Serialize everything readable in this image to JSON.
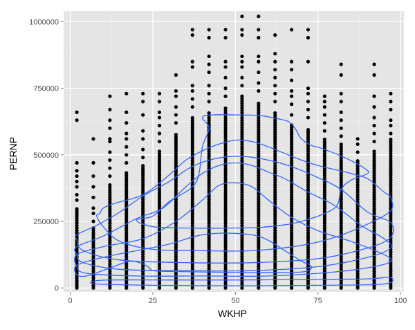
{
  "chart_data": {
    "type": "scatter",
    "title": "",
    "xlabel": "WKHP",
    "ylabel": "PERNP",
    "xlim": [
      -2,
      101
    ],
    "ylim": [
      -15000,
      1040000
    ],
    "x_ticks": [
      0,
      25,
      50,
      75,
      100
    ],
    "x_tick_labels": [
      "0",
      "25",
      "50",
      "75",
      "100"
    ],
    "y_ticks": [
      0,
      250000,
      500000,
      750000,
      1000000
    ],
    "y_tick_labels": [
      "0",
      "250000",
      "500000",
      "750000",
      "1000000"
    ],
    "grid": true,
    "legend": "none",
    "colors": {
      "panel_background": "#e5e5e5",
      "grid_major": "#ffffff",
      "grid_minor": "#f2f2f2",
      "points": "#000000",
      "contours": "#3366ff"
    },
    "point_columns": [
      {
        "x": 2,
        "dense_max": 300000,
        "outliers": [
          330000,
          350000,
          380000,
          400000,
          420000,
          440000,
          470000,
          630000,
          660000
        ]
      },
      {
        "x": 7,
        "dense_max": 230000,
        "outliers": [
          250000,
          280000,
          300000,
          340000,
          380000,
          420000,
          470000,
          560000
        ]
      },
      {
        "x": 12,
        "dense_max": 390000,
        "outliers": [
          420000,
          450000,
          480000,
          510000,
          550000,
          560000,
          600000,
          630000,
          670000,
          720000
        ]
      },
      {
        "x": 17,
        "dense_max": 440000,
        "outliers": [
          470000,
          500000,
          530000,
          560000,
          580000,
          620000,
          660000,
          730000
        ]
      },
      {
        "x": 22,
        "dense_max": 460000,
        "outliers": [
          490000,
          520000,
          560000,
          590000,
          650000,
          700000,
          730000
        ]
      },
      {
        "x": 27,
        "dense_max": 520000,
        "outliers": [
          550000,
          580000,
          610000,
          640000,
          660000,
          700000,
          730000
        ]
      },
      {
        "x": 32,
        "dense_max": 580000,
        "outliers": [
          620000,
          650000,
          680000,
          720000,
          740000,
          800000
        ]
      },
      {
        "x": 37,
        "dense_max": 640000,
        "outliers": [
          680000,
          710000,
          740000,
          760000,
          830000,
          850000,
          950000,
          970000
        ]
      },
      {
        "x": 42,
        "dense_max": 660000,
        "outliers": [
          700000,
          730000,
          760000,
          810000,
          840000,
          870000,
          940000,
          970000
        ]
      },
      {
        "x": 47,
        "dense_max": 680000,
        "outliers": [
          720000,
          750000,
          790000,
          830000,
          850000,
          940000,
          970000
        ]
      },
      {
        "x": 52,
        "dense_max": 720000,
        "outliers": [
          760000,
          790000,
          830000,
          850000,
          870000,
          950000,
          970000,
          1020000
        ]
      },
      {
        "x": 57,
        "dense_max": 700000,
        "outliers": [
          740000,
          770000,
          810000,
          850000,
          870000,
          940000,
          970000,
          1020000
        ]
      },
      {
        "x": 62,
        "dense_max": 660000,
        "outliers": [
          700000,
          730000,
          760000,
          790000,
          820000,
          850000,
          880000,
          950000
        ]
      },
      {
        "x": 67,
        "dense_max": 620000,
        "outliers": [
          650000,
          690000,
          720000,
          740000,
          780000,
          820000,
          850000,
          970000
        ]
      },
      {
        "x": 72,
        "dense_max": 600000,
        "outliers": [
          640000,
          670000,
          700000,
          730000,
          750000,
          850000,
          940000,
          970000
        ]
      },
      {
        "x": 77,
        "dense_max": 560000,
        "outliers": [
          590000,
          620000,
          650000,
          680000,
          700000,
          720000
        ]
      },
      {
        "x": 82,
        "dense_max": 540000,
        "outliers": [
          570000,
          600000,
          630000,
          660000,
          700000,
          730000,
          800000,
          840000
        ]
      },
      {
        "x": 87,
        "dense_max": 480000,
        "outliers": [
          510000,
          540000,
          560000
        ]
      },
      {
        "x": 92,
        "dense_max": 520000,
        "outliers": [
          550000,
          580000,
          610000,
          640000,
          680000,
          720000,
          800000,
          840000
        ]
      },
      {
        "x": 97,
        "dense_max": 560000,
        "outliers": [
          580000,
          610000,
          630000,
          670000,
          700000,
          730000
        ]
      }
    ],
    "contours": [
      {
        "name": "",
        "points": [
          [
            7,
            25000
          ],
          [
            12,
            30000
          ],
          [
            30,
            30000
          ],
          [
            50,
            30000
          ],
          [
            70,
            32000
          ],
          [
            90,
            34000
          ],
          [
            97,
            40000
          ],
          [
            95,
            15000
          ],
          [
            75,
            10000
          ],
          [
            50,
            8000
          ],
          [
            25,
            10000
          ],
          [
            8,
            15000
          ]
        ]
      },
      {
        "name": "",
        "points": [
          [
            2,
            85000
          ],
          [
            10,
            115000
          ],
          [
            20,
            140000
          ],
          [
            30,
            165000
          ],
          [
            40,
            200000
          ],
          [
            50,
            205000
          ],
          [
            58,
            190000
          ],
          [
            65,
            140000
          ],
          [
            70,
            100000
          ],
          [
            72,
            90000
          ],
          [
            73,
            75000
          ],
          [
            70,
            60000
          ],
          [
            55,
            58000
          ],
          [
            40,
            60000
          ],
          [
            30,
            62000
          ],
          [
            25,
            65000
          ],
          [
            24,
            75000
          ],
          [
            22,
            90000
          ],
          [
            18,
            100000
          ],
          [
            12,
            75000
          ],
          [
            5,
            45000
          ],
          [
            2,
            50000
          ]
        ]
      },
      {
        "name": "",
        "points": [
          [
            2,
            125000
          ],
          [
            10,
            155000
          ],
          [
            22,
            185000
          ],
          [
            32,
            250000
          ],
          [
            40,
            330000
          ],
          [
            45,
            385000
          ],
          [
            50,
            395000
          ],
          [
            55,
            380000
          ],
          [
            60,
            330000
          ],
          [
            67,
            265000
          ],
          [
            75,
            215000
          ],
          [
            85,
            175000
          ],
          [
            95,
            125000
          ],
          [
            97,
            100000
          ],
          [
            92,
            80000
          ],
          [
            80,
            60000
          ],
          [
            60,
            45000
          ],
          [
            40,
            45000
          ],
          [
            20,
            45000
          ],
          [
            5,
            55000
          ],
          [
            2,
            80000
          ]
        ]
      },
      {
        "name": "",
        "points": [
          [
            2,
            155000
          ],
          [
            10,
            195000
          ],
          [
            20,
            260000
          ],
          [
            28,
            300000
          ],
          [
            35,
            380000
          ],
          [
            40,
            430000
          ],
          [
            45,
            460000
          ],
          [
            50,
            470000
          ],
          [
            55,
            460000
          ],
          [
            60,
            435000
          ],
          [
            65,
            410000
          ],
          [
            72,
            360000
          ],
          [
            80,
            310000
          ],
          [
            88,
            235000
          ],
          [
            95,
            185000
          ],
          [
            97,
            150000
          ],
          [
            90,
            115000
          ],
          [
            75,
            80000
          ],
          [
            55,
            65000
          ],
          [
            35,
            65000
          ],
          [
            15,
            70000
          ],
          [
            4,
            95000
          ],
          [
            2,
            125000
          ]
        ]
      },
      {
        "name": "",
        "points": [
          [
            2,
            200000
          ],
          [
            8,
            235000
          ],
          [
            15,
            285000
          ],
          [
            22,
            345000
          ],
          [
            30,
            400000
          ],
          [
            36,
            450000
          ],
          [
            42,
            480000
          ],
          [
            50,
            495000
          ],
          [
            58,
            485000
          ],
          [
            66,
            460000
          ],
          [
            74,
            420000
          ],
          [
            82,
            370000
          ],
          [
            90,
            285000
          ],
          [
            97,
            245000
          ],
          [
            97,
            190000
          ],
          [
            90,
            150000
          ],
          [
            75,
            110000
          ],
          [
            55,
            95000
          ],
          [
            35,
            95000
          ],
          [
            15,
            105000
          ],
          [
            4,
            140000
          ],
          [
            2,
            180000
          ]
        ]
      },
      {
        "name": "",
        "points": [
          [
            9,
            280000
          ],
          [
            10,
            300000
          ],
          [
            14,
            320000
          ],
          [
            20,
            340000
          ],
          [
            24,
            365000
          ],
          [
            30,
            425000
          ],
          [
            35,
            480000
          ],
          [
            40,
            515000
          ],
          [
            45,
            540000
          ],
          [
            50,
            555000
          ],
          [
            55,
            550000
          ],
          [
            60,
            530000
          ],
          [
            65,
            505000
          ],
          [
            70,
            480000
          ],
          [
            75,
            460000
          ],
          [
            80,
            445000
          ],
          [
            85,
            430000
          ],
          [
            90,
            410000
          ],
          [
            95,
            360000
          ],
          [
            97,
            340000
          ],
          [
            97,
            290000
          ],
          [
            90,
            240000
          ],
          [
            80,
            190000
          ],
          [
            70,
            160000
          ],
          [
            55,
            140000
          ],
          [
            40,
            140000
          ],
          [
            25,
            145000
          ],
          [
            15,
            175000
          ],
          [
            10,
            230000
          ],
          [
            8,
            270000
          ]
        ]
      },
      {
        "name": "",
        "points": [
          [
            20,
            255000
          ],
          [
            25,
            270000
          ],
          [
            30,
            325000
          ],
          [
            38,
            395000
          ],
          [
            40,
            530000
          ],
          [
            42,
            600000
          ],
          [
            40,
            640000
          ],
          [
            43,
            650000
          ],
          [
            50,
            650000
          ],
          [
            57,
            648000
          ],
          [
            61,
            640000
          ],
          [
            66,
            625000
          ],
          [
            68,
            600000
          ],
          [
            70,
            560000
          ],
          [
            73,
            535000
          ],
          [
            76,
            525000
          ],
          [
            83,
            490000
          ],
          [
            89,
            450000
          ],
          [
            90,
            430000
          ],
          [
            85,
            405000
          ],
          [
            82,
            370000
          ],
          [
            80,
            300000
          ],
          [
            70,
            250000
          ],
          [
            60,
            230000
          ],
          [
            50,
            225000
          ],
          [
            35,
            225000
          ],
          [
            25,
            230000
          ]
        ]
      }
    ]
  }
}
